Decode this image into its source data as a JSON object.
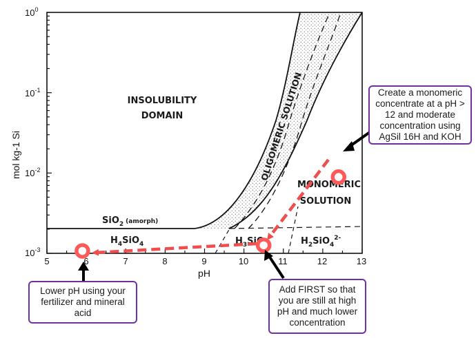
{
  "chart_data": {
    "type": "phase-diagram",
    "xlabel": "pH",
    "ylabel": "mol kg-1 Si",
    "x_ticks": [
      "5",
      "6",
      "7",
      "8",
      "9",
      "10",
      "11",
      "12",
      "13"
    ],
    "y_ticks": [
      {
        "base": "10",
        "exp": "0"
      },
      {
        "base": "10",
        "exp": "-1"
      },
      {
        "base": "10",
        "exp": "-2"
      },
      {
        "base": "10",
        "exp": "-3"
      }
    ],
    "xlim": [
      5,
      13
    ],
    "ylim_log10": [
      -3,
      0
    ],
    "regions": {
      "insolubility": [
        "INSOLUBILITY",
        "DOMAIN"
      ],
      "oligomeric": "OLIGOMERIC  SOLUTION",
      "monomeric": [
        "MONOMERIC",
        "SOLUTION"
      ],
      "sio2": {
        "main": "SiO",
        "sub": "2",
        "note": "(amorph)"
      },
      "h4sio4": {
        "main": "H",
        "sub1": "4",
        "mid": "SiO",
        "sub2": "4"
      },
      "h3sio4": {
        "main": "H",
        "sub1": "3",
        "mid": "SiO"
      },
      "h2sio4": {
        "main": "H",
        "sub1": "2",
        "mid": "SiO",
        "sub2": "4",
        "sup": "2-"
      }
    },
    "markers": [
      {
        "name": "start",
        "ph": 12.4,
        "log_si": -2.05
      },
      {
        "name": "after-fertilizer",
        "ph": 10.5,
        "log_si": -2.9
      },
      {
        "name": "final",
        "ph": 5.9,
        "log_si": -2.97
      }
    ]
  },
  "callouts": {
    "top": "Create a monomeric concentrate at a pH > 12 and moderate concentration using AgSil 16H and KOH",
    "left": "Lower pH using your fertilizer and mineral acid",
    "mid": "Add FIRST so that you are still at high pH and much lower concentration"
  },
  "colors": {
    "marker": "#ff5a5a",
    "arrow_dashed": "#f04e4e",
    "callout_border": "#7030a0",
    "pointer": "#000000"
  }
}
